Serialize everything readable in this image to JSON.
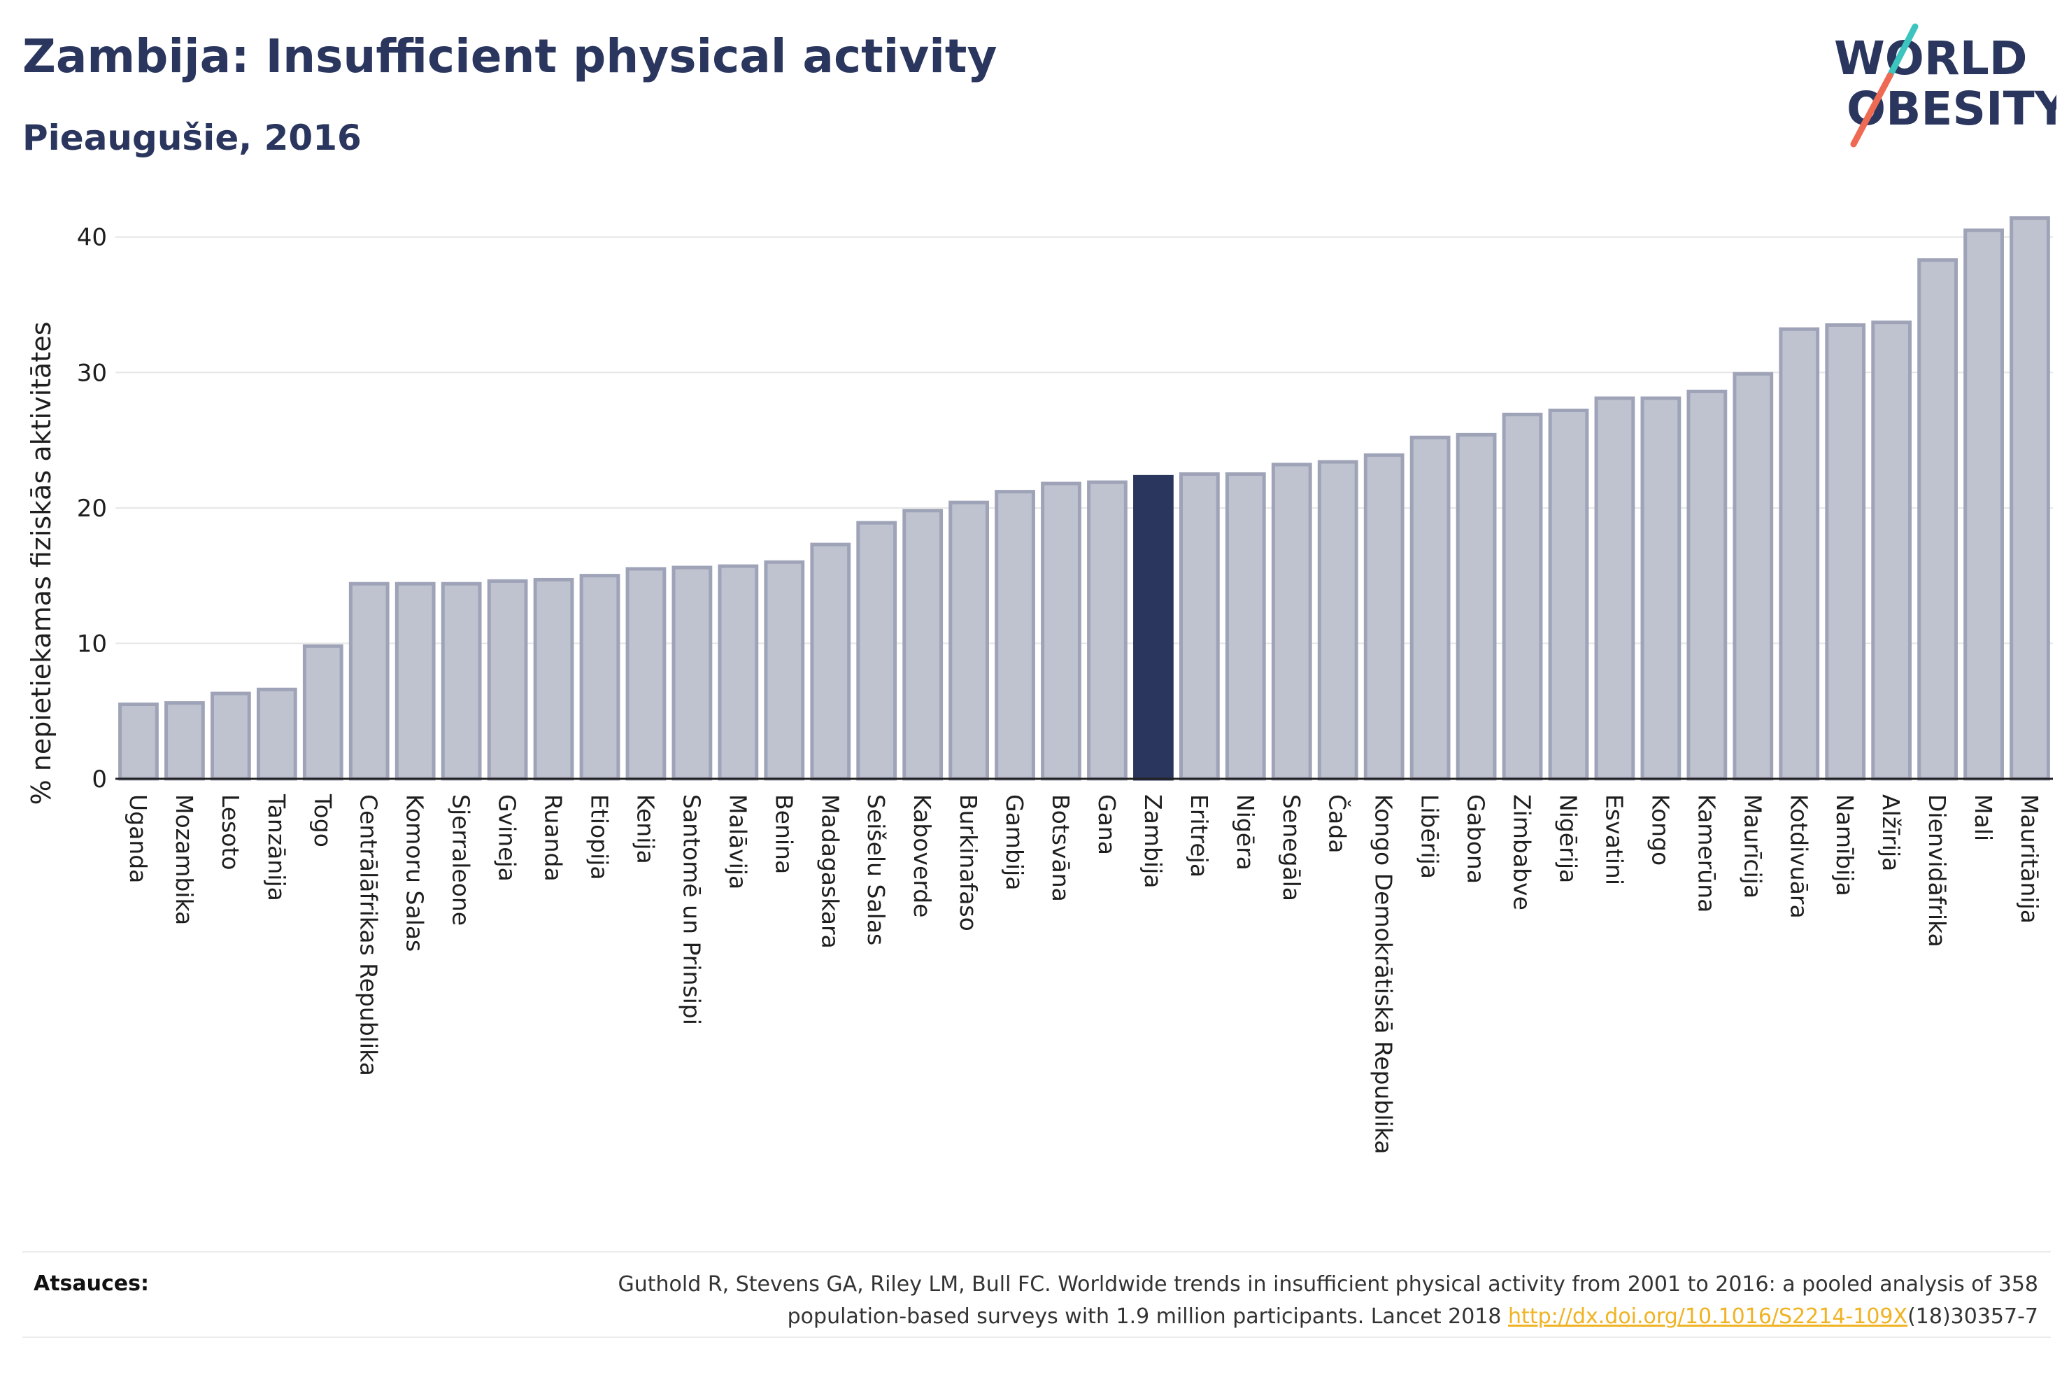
{
  "header": {
    "title": "Zambija: Insufficient physical activity",
    "subtitle": "Pieaugušie, 2016"
  },
  "logo": {
    "line1": "WORLD",
    "line2": "OBESITY"
  },
  "colors": {
    "bar_fill": "#bfc3cf",
    "bar_stroke": "#9ea3b8",
    "highlight": "#2a365e",
    "title": "#2a365e",
    "grid": "#e6e6e6",
    "logo_teal": "#3cc4be",
    "logo_coral": "#ee6a52",
    "link": "#f0b323"
  },
  "chart_data": {
    "type": "bar",
    "ylabel": "% nepietiekamas fiziskās aktivitātes",
    "ylim": [
      0,
      42
    ],
    "yticks": [
      0,
      10,
      20,
      30,
      40
    ],
    "grid": true,
    "highlight": "Zambija",
    "categories": [
      "Uganda",
      "Mozambika",
      "Lesoto",
      "Tanzānija",
      "Togo",
      "Centrālāfrikas Republika",
      "Komoru Salas",
      "Sjerraleone",
      "Gvineja",
      "Ruanda",
      "Etiopija",
      "Kenija",
      "Santomē un Prinsipi",
      "Malāvija",
      "Benina",
      "Madagaskara",
      "Seišelu Salas",
      "Kaboverde",
      "Burkinafaso",
      "Gambija",
      "Botsvāna",
      "Gana",
      "Zambija",
      "Eritreja",
      "Nigēra",
      "Senegāla",
      "Čada",
      "Kongo Demokrātiskā Republika",
      "Libērija",
      "Gabona",
      "Zimbabve",
      "Nigērija",
      "Esvatini",
      "Kongo",
      "Kamerūna",
      "Maurīcija",
      "Kotdivuāra",
      "Namībija",
      "Alžīrija",
      "Dienvidāfrika",
      "Mali",
      "Mauritānija"
    ],
    "values": [
      5.5,
      5.6,
      6.3,
      6.6,
      9.8,
      14.4,
      14.4,
      14.4,
      14.6,
      14.7,
      15.0,
      15.5,
      15.6,
      15.7,
      16.0,
      17.3,
      18.9,
      19.8,
      20.4,
      21.2,
      21.8,
      21.9,
      22.3,
      22.5,
      22.5,
      23.2,
      23.4,
      23.9,
      25.2,
      25.4,
      26.9,
      27.2,
      28.1,
      28.1,
      28.6,
      29.9,
      33.2,
      33.5,
      33.7,
      38.3,
      40.5,
      41.4
    ]
  },
  "footer": {
    "source_label": "Atsauces:",
    "source_line1": "Guthold R, Stevens GA, Riley LM, Bull FC. Worldwide trends in insufficient physical activity from 2001 to 2016: a pooled analysis of 358",
    "source_line2_pre": "population-based surveys with 1.9 million participants. Lancet 2018 ",
    "source_link": "http://dx.doi.org/10.1016/S2214-109X",
    "source_line2_post": "(18)30357-7"
  }
}
